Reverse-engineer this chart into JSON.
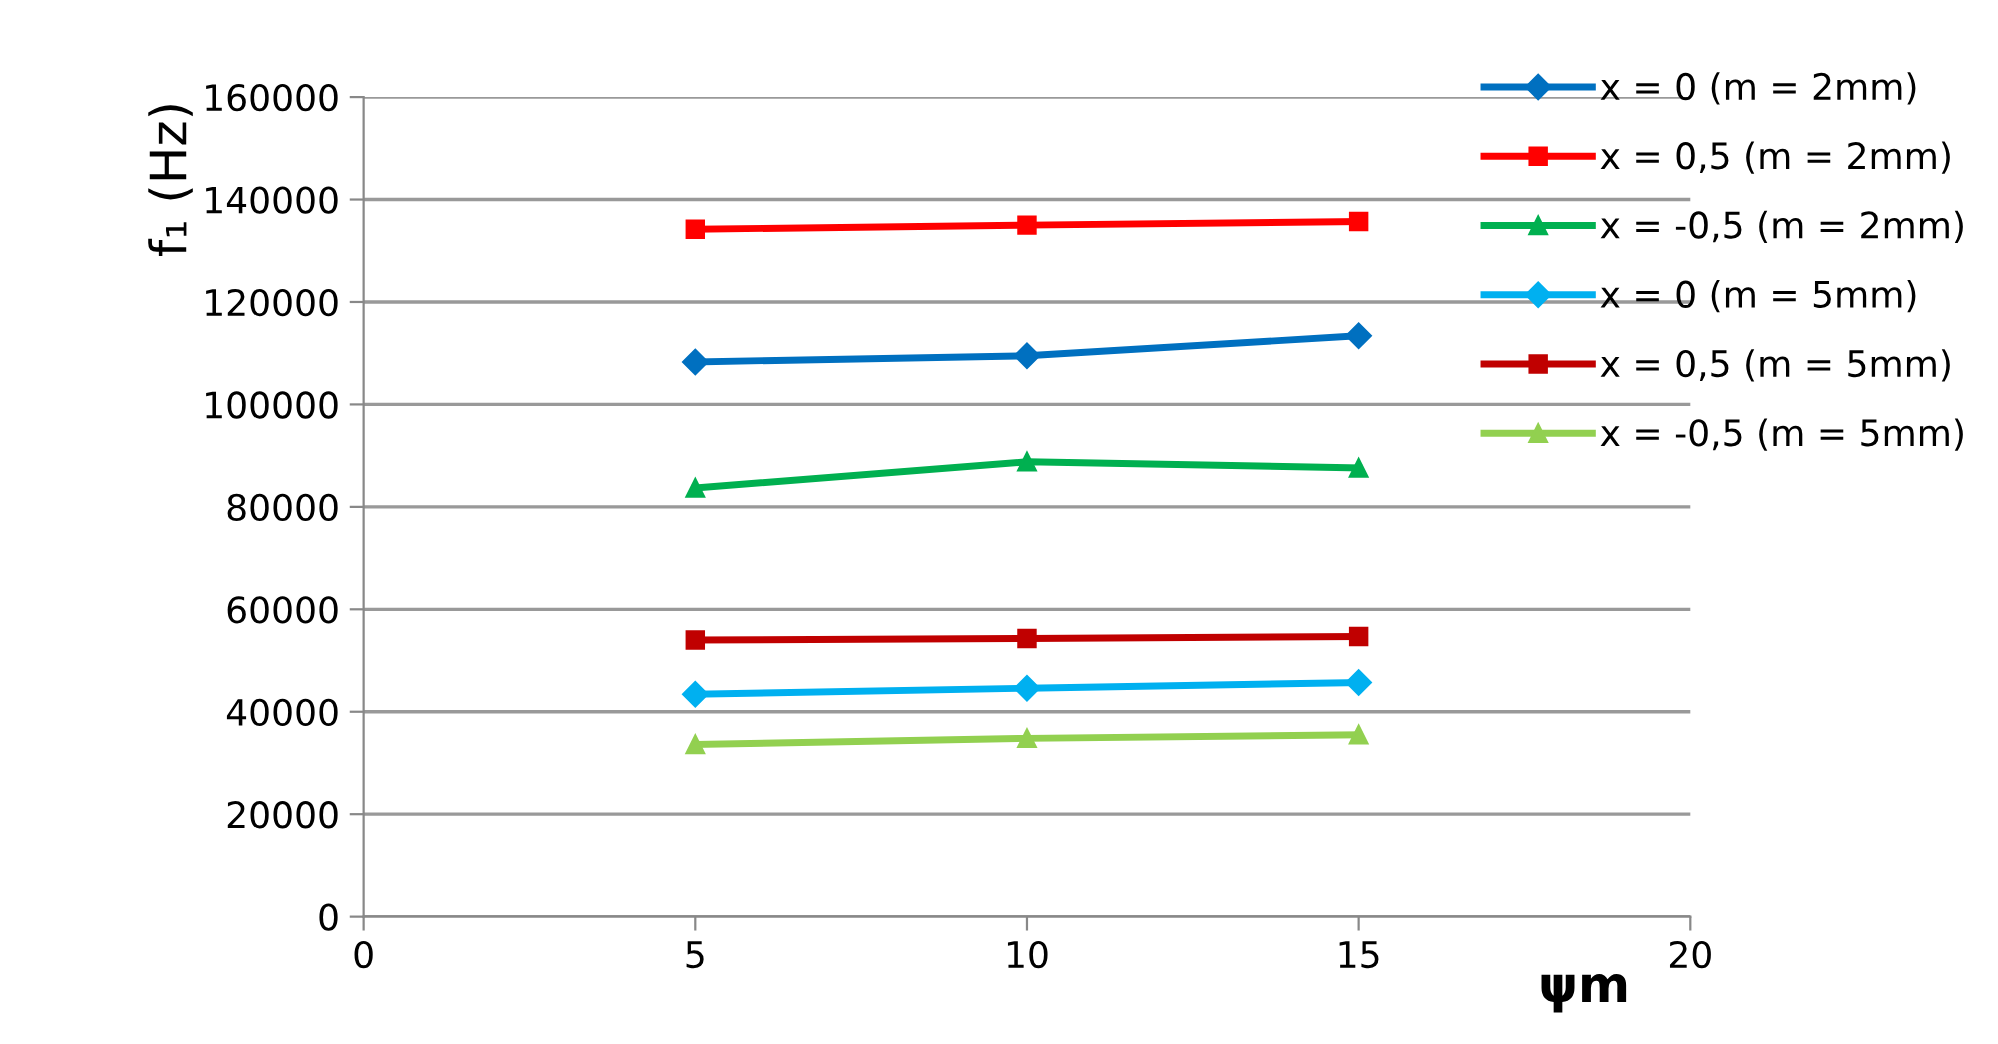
{
  "chart_data": {
    "type": "line",
    "xlabel": "ψm",
    "ylabel": "f₁ (Hz)",
    "x": [
      5,
      10,
      15
    ],
    "xlim": [
      0,
      20
    ],
    "xticks": [
      0,
      5,
      10,
      15,
      20
    ],
    "ylim": [
      0,
      160000
    ],
    "yticks": [
      0,
      20000,
      40000,
      60000,
      80000,
      100000,
      120000,
      140000,
      160000
    ],
    "grid": "y",
    "legend": "right",
    "line_style": "solid",
    "series": [
      {
        "name": "x = 0 (m = 2mm)",
        "color": "#0070c0",
        "marker": "diamond",
        "values": [
          108300,
          109500,
          113400
        ]
      },
      {
        "name": "x = 0,5 (m = 2mm)",
        "color": "#ff0000",
        "marker": "square",
        "values": [
          134200,
          135000,
          135700
        ]
      },
      {
        "name": "x = -0,5 (m = 2mm)",
        "color": "#00b050",
        "marker": "triangle",
        "values": [
          83700,
          88800,
          87600
        ]
      },
      {
        "name": "x = 0 (m = 5mm)",
        "color": "#00b0f0",
        "marker": "diamond",
        "values": [
          43400,
          44600,
          45700
        ]
      },
      {
        "name": "x = 0,5 (m = 5mm)",
        "color": "#c00000",
        "marker": "square",
        "values": [
          54000,
          54300,
          54700
        ]
      },
      {
        "name": "x = -0,5 (m = 5mm)",
        "color": "#92d050",
        "marker": "triangle",
        "values": [
          33600,
          34800,
          35500
        ]
      }
    ]
  }
}
